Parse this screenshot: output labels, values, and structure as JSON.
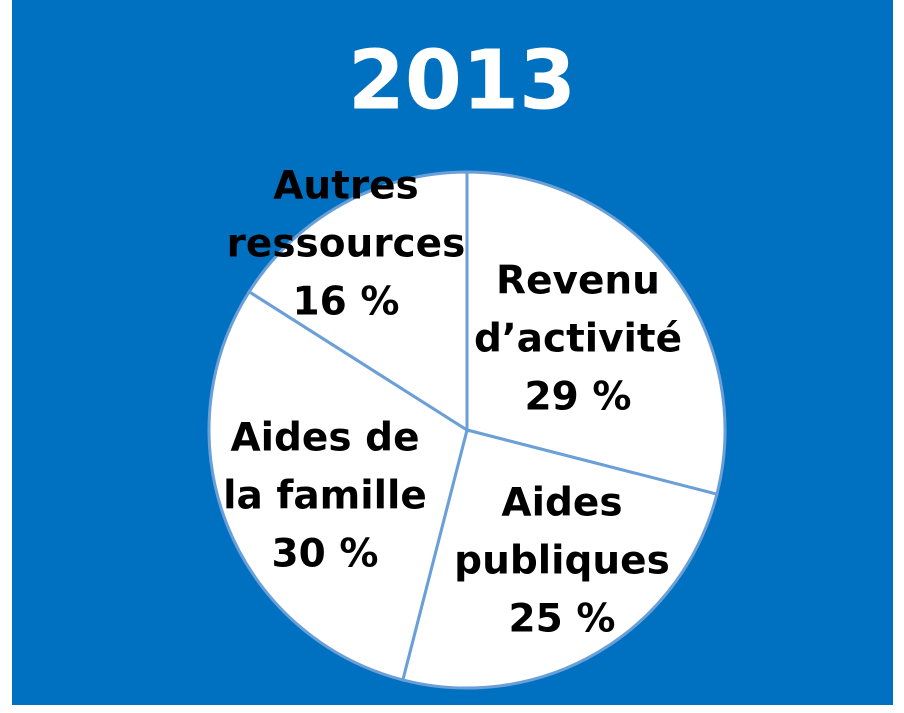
{
  "chart_data": {
    "type": "pie",
    "title": "2013",
    "categories": [
      [
        "Revenu",
        "d’activité"
      ],
      [
        "Aides",
        "publiques"
      ],
      [
        "Aides de",
        "la famille"
      ],
      [
        "Autres",
        "ressources"
      ]
    ],
    "values": [
      29,
      25,
      30,
      16
    ],
    "value_labels": [
      "29 %",
      "25 %",
      "30 %",
      "16 %"
    ],
    "color": "#ffffff"
  }
}
